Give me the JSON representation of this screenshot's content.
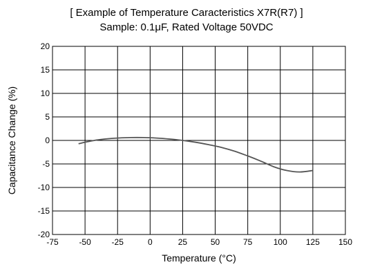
{
  "header": {
    "title": "[ Example of Temperature Caracteristics X7R(R7) ]",
    "subtitle": "Sample: 0.1μF, Rated Voltage 50VDC"
  },
  "chart_data": {
    "type": "line",
    "title": "[ Example of Temperature Caracteristics X7R(R7) ]",
    "subtitle": "Sample: 0.1μF, Rated Voltage 50VDC",
    "xlabel": "Temperature (°C)",
    "ylabel": "Capacitance Change (%)",
    "xlim": [
      -75,
      150
    ],
    "ylim": [
      -20,
      20
    ],
    "xticks": [
      -75,
      -50,
      -25,
      0,
      25,
      50,
      75,
      100,
      125,
      150
    ],
    "yticks": [
      20,
      15,
      10,
      5,
      0,
      -5,
      -10,
      -15,
      -20
    ],
    "grid": true,
    "series": [
      {
        "color": "#555555",
        "x": [
          -55,
          -45,
          -35,
          -25,
          -15,
          -5,
          5,
          15,
          25,
          35,
          45,
          55,
          65,
          75,
          85,
          95,
          105,
          115,
          125
        ],
        "y": [
          -0.7,
          -0.1,
          0.3,
          0.5,
          0.6,
          0.6,
          0.5,
          0.3,
          0.0,
          -0.4,
          -0.9,
          -1.5,
          -2.3,
          -3.3,
          -4.4,
          -5.6,
          -6.4,
          -6.7,
          -6.4
        ]
      }
    ]
  }
}
